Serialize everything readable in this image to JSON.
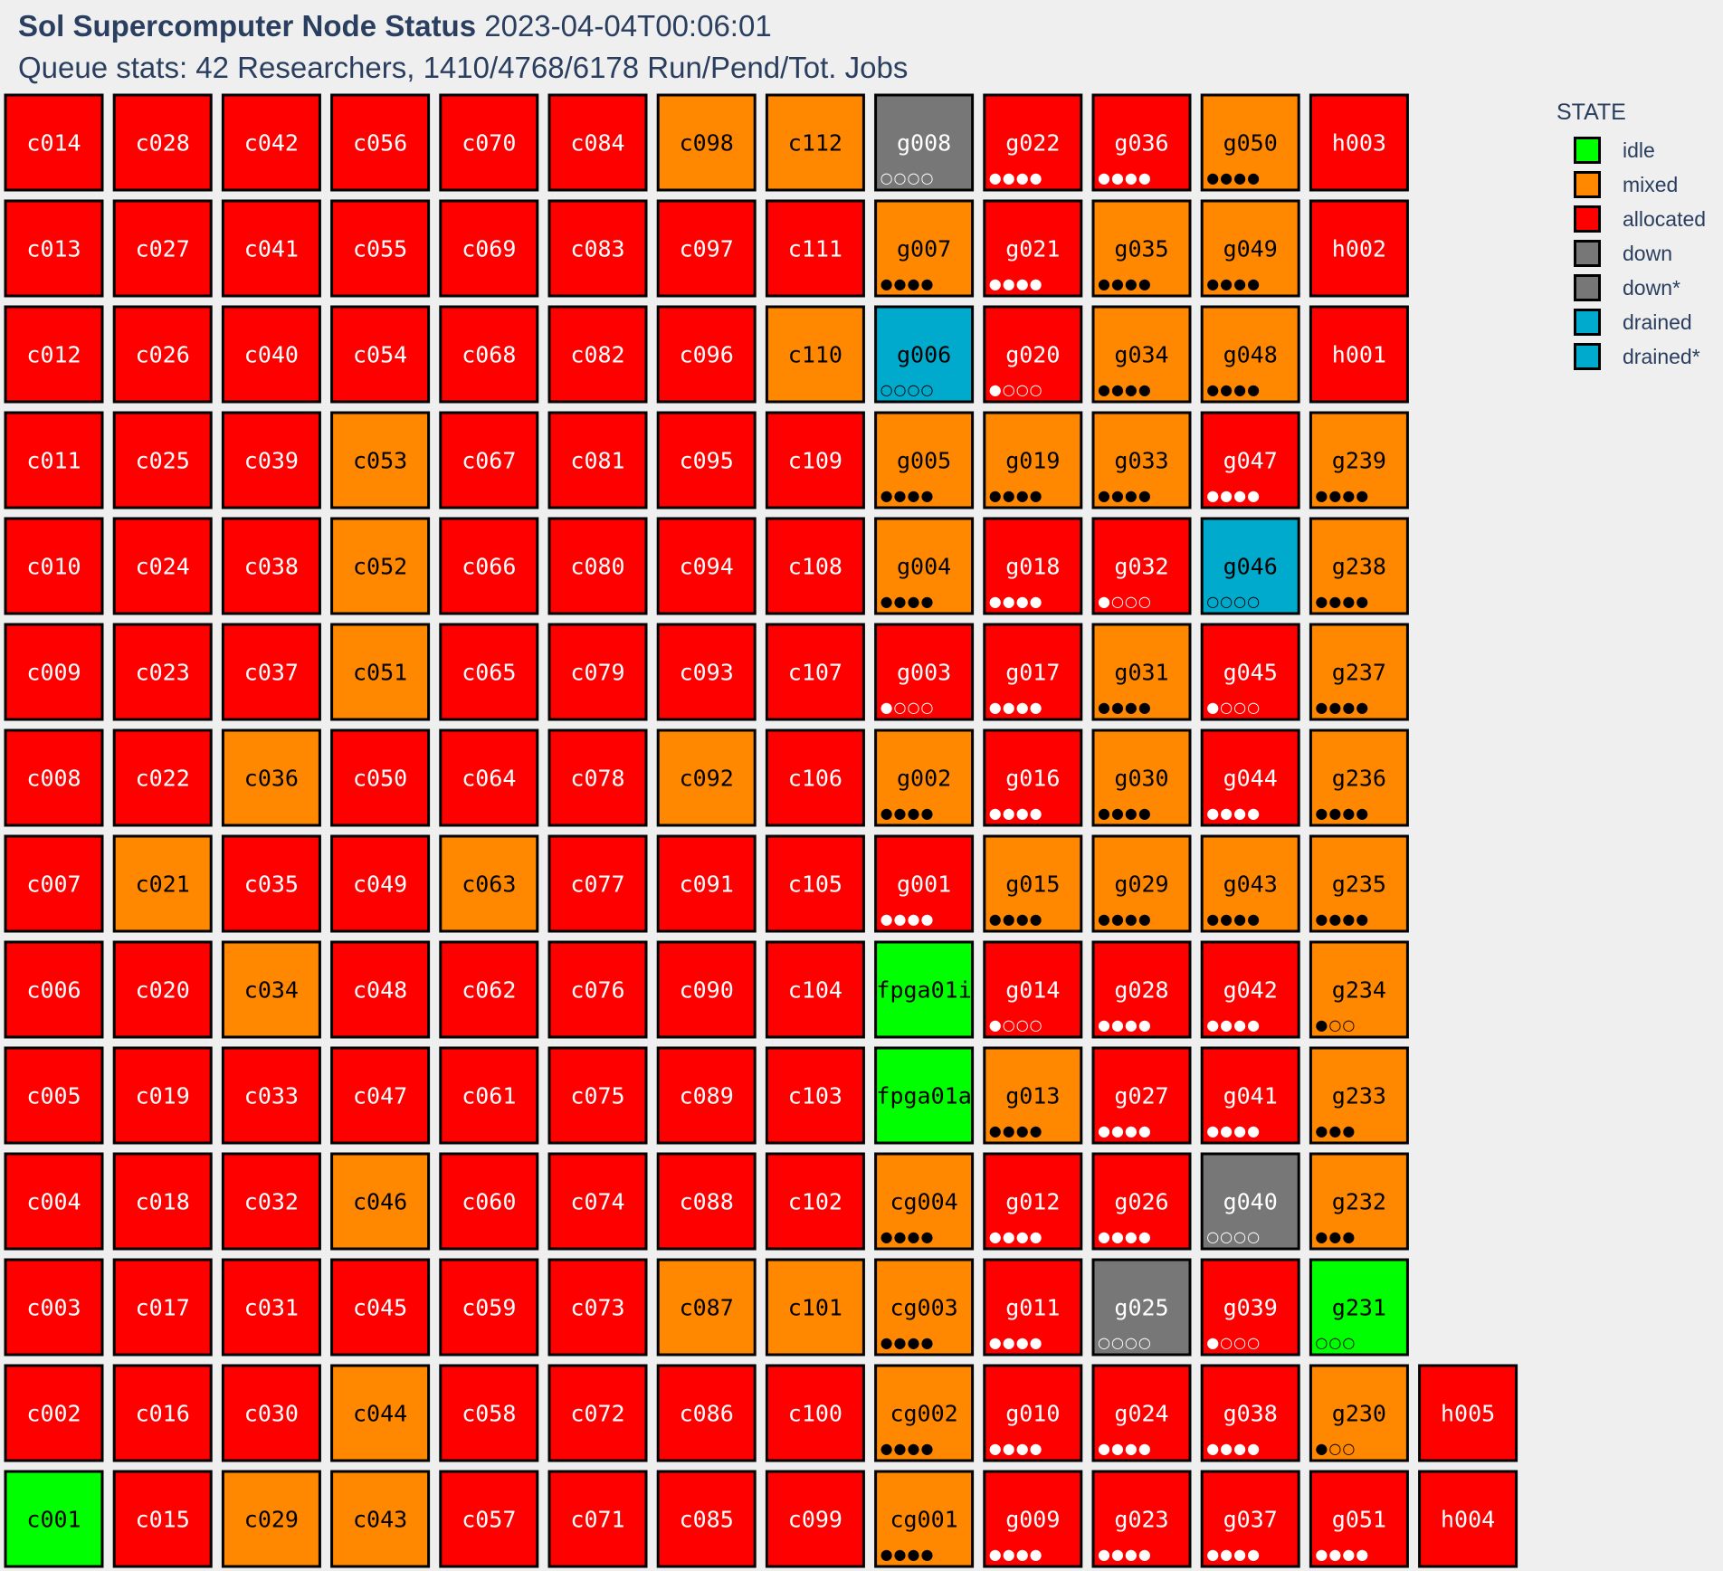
{
  "header": {
    "title_bold": "Sol Supercomputer Node Status",
    "timestamp": "2023-04-04T00:06:01",
    "subtitle": "Queue stats: 42 Researchers, 1410/4768/6178 Run/Pend/Tot. Jobs"
  },
  "legend": {
    "title": "STATE",
    "items": [
      {
        "label": "idle",
        "color": "#00ff00"
      },
      {
        "label": "mixed",
        "color": "#ff8800"
      },
      {
        "label": "allocated",
        "color": "#ff0000"
      },
      {
        "label": "down",
        "color": "#777777"
      },
      {
        "label": "down*",
        "color": "#777777"
      },
      {
        "label": "drained",
        "color": "#00aacc"
      },
      {
        "label": "drained*",
        "color": "#00aacc"
      }
    ]
  },
  "chart_data": {
    "type": "heatmap",
    "state_colors": {
      "idle": "#00ff00",
      "mixed": "#ff8800",
      "allocated": "#ff0000",
      "down": "#777777",
      "drained": "#00aacc"
    },
    "columns": [
      [
        {
          "name": "c014",
          "state": "allocated"
        },
        {
          "name": "c013",
          "state": "allocated"
        },
        {
          "name": "c012",
          "state": "allocated"
        },
        {
          "name": "c011",
          "state": "allocated"
        },
        {
          "name": "c010",
          "state": "allocated"
        },
        {
          "name": "c009",
          "state": "allocated"
        },
        {
          "name": "c008",
          "state": "allocated"
        },
        {
          "name": "c007",
          "state": "allocated"
        },
        {
          "name": "c006",
          "state": "allocated"
        },
        {
          "name": "c005",
          "state": "allocated"
        },
        {
          "name": "c004",
          "state": "allocated"
        },
        {
          "name": "c003",
          "state": "allocated"
        },
        {
          "name": "c002",
          "state": "allocated"
        },
        {
          "name": "c001",
          "state": "idle"
        }
      ],
      [
        {
          "name": "c028",
          "state": "allocated"
        },
        {
          "name": "c027",
          "state": "allocated"
        },
        {
          "name": "c026",
          "state": "allocated"
        },
        {
          "name": "c025",
          "state": "allocated"
        },
        {
          "name": "c024",
          "state": "allocated"
        },
        {
          "name": "c023",
          "state": "allocated"
        },
        {
          "name": "c022",
          "state": "allocated"
        },
        {
          "name": "c021",
          "state": "mixed"
        },
        {
          "name": "c020",
          "state": "allocated"
        },
        {
          "name": "c019",
          "state": "allocated"
        },
        {
          "name": "c018",
          "state": "allocated"
        },
        {
          "name": "c017",
          "state": "allocated"
        },
        {
          "name": "c016",
          "state": "allocated"
        },
        {
          "name": "c015",
          "state": "allocated"
        }
      ],
      [
        {
          "name": "c042",
          "state": "allocated"
        },
        {
          "name": "c041",
          "state": "allocated"
        },
        {
          "name": "c040",
          "state": "allocated"
        },
        {
          "name": "c039",
          "state": "allocated"
        },
        {
          "name": "c038",
          "state": "allocated"
        },
        {
          "name": "c037",
          "state": "allocated"
        },
        {
          "name": "c036",
          "state": "mixed"
        },
        {
          "name": "c035",
          "state": "allocated"
        },
        {
          "name": "c034",
          "state": "mixed"
        },
        {
          "name": "c033",
          "state": "allocated"
        },
        {
          "name": "c032",
          "state": "allocated"
        },
        {
          "name": "c031",
          "state": "allocated"
        },
        {
          "name": "c030",
          "state": "allocated"
        },
        {
          "name": "c029",
          "state": "mixed"
        }
      ],
      [
        {
          "name": "c056",
          "state": "allocated"
        },
        {
          "name": "c055",
          "state": "allocated"
        },
        {
          "name": "c054",
          "state": "allocated"
        },
        {
          "name": "c053",
          "state": "mixed"
        },
        {
          "name": "c052",
          "state": "mixed"
        },
        {
          "name": "c051",
          "state": "mixed"
        },
        {
          "name": "c050",
          "state": "allocated"
        },
        {
          "name": "c049",
          "state": "allocated"
        },
        {
          "name": "c048",
          "state": "allocated"
        },
        {
          "name": "c047",
          "state": "allocated"
        },
        {
          "name": "c046",
          "state": "mixed"
        },
        {
          "name": "c045",
          "state": "allocated"
        },
        {
          "name": "c044",
          "state": "mixed"
        },
        {
          "name": "c043",
          "state": "mixed"
        }
      ],
      [
        {
          "name": "c070",
          "state": "allocated"
        },
        {
          "name": "c069",
          "state": "allocated"
        },
        {
          "name": "c068",
          "state": "allocated"
        },
        {
          "name": "c067",
          "state": "allocated"
        },
        {
          "name": "c066",
          "state": "allocated"
        },
        {
          "name": "c065",
          "state": "allocated"
        },
        {
          "name": "c064",
          "state": "allocated"
        },
        {
          "name": "c063",
          "state": "mixed"
        },
        {
          "name": "c062",
          "state": "allocated"
        },
        {
          "name": "c061",
          "state": "allocated"
        },
        {
          "name": "c060",
          "state": "allocated"
        },
        {
          "name": "c059",
          "state": "allocated"
        },
        {
          "name": "c058",
          "state": "allocated"
        },
        {
          "name": "c057",
          "state": "allocated"
        }
      ],
      [
        {
          "name": "c084",
          "state": "allocated"
        },
        {
          "name": "c083",
          "state": "allocated"
        },
        {
          "name": "c082",
          "state": "allocated"
        },
        {
          "name": "c081",
          "state": "allocated"
        },
        {
          "name": "c080",
          "state": "allocated"
        },
        {
          "name": "c079",
          "state": "allocated"
        },
        {
          "name": "c078",
          "state": "allocated"
        },
        {
          "name": "c077",
          "state": "allocated"
        },
        {
          "name": "c076",
          "state": "allocated"
        },
        {
          "name": "c075",
          "state": "allocated"
        },
        {
          "name": "c074",
          "state": "allocated"
        },
        {
          "name": "c073",
          "state": "allocated"
        },
        {
          "name": "c072",
          "state": "allocated"
        },
        {
          "name": "c071",
          "state": "allocated"
        }
      ],
      [
        {
          "name": "c098",
          "state": "mixed"
        },
        {
          "name": "c097",
          "state": "allocated"
        },
        {
          "name": "c096",
          "state": "allocated"
        },
        {
          "name": "c095",
          "state": "allocated"
        },
        {
          "name": "c094",
          "state": "allocated"
        },
        {
          "name": "c093",
          "state": "allocated"
        },
        {
          "name": "c092",
          "state": "mixed"
        },
        {
          "name": "c091",
          "state": "allocated"
        },
        {
          "name": "c090",
          "state": "allocated"
        },
        {
          "name": "c089",
          "state": "allocated"
        },
        {
          "name": "c088",
          "state": "allocated"
        },
        {
          "name": "c087",
          "state": "mixed"
        },
        {
          "name": "c086",
          "state": "allocated"
        },
        {
          "name": "c085",
          "state": "allocated"
        }
      ],
      [
        {
          "name": "c112",
          "state": "mixed"
        },
        {
          "name": "c111",
          "state": "allocated"
        },
        {
          "name": "c110",
          "state": "mixed"
        },
        {
          "name": "c109",
          "state": "allocated"
        },
        {
          "name": "c108",
          "state": "allocated"
        },
        {
          "name": "c107",
          "state": "allocated"
        },
        {
          "name": "c106",
          "state": "allocated"
        },
        {
          "name": "c105",
          "state": "allocated"
        },
        {
          "name": "c104",
          "state": "allocated"
        },
        {
          "name": "c103",
          "state": "allocated"
        },
        {
          "name": "c102",
          "state": "allocated"
        },
        {
          "name": "c101",
          "state": "mixed"
        },
        {
          "name": "c100",
          "state": "allocated"
        },
        {
          "name": "c099",
          "state": "allocated"
        }
      ],
      [
        {
          "name": "g008",
          "state": "down",
          "dots": "○○○○"
        },
        {
          "name": "g007",
          "state": "mixed",
          "dots": "●●●●"
        },
        {
          "name": "g006",
          "state": "drained",
          "dots": "○○○○"
        },
        {
          "name": "g005",
          "state": "mixed",
          "dots": "●●●●"
        },
        {
          "name": "g004",
          "state": "mixed",
          "dots": "●●●●"
        },
        {
          "name": "g003",
          "state": "allocated",
          "dots": "●○○○"
        },
        {
          "name": "g002",
          "state": "mixed",
          "dots": "●●●●"
        },
        {
          "name": "g001",
          "state": "allocated",
          "dots": "●●●●"
        },
        {
          "name": "fpga01i",
          "state": "idle"
        },
        {
          "name": "fpga01a",
          "state": "idle"
        },
        {
          "name": "cg004",
          "state": "mixed",
          "dots": "●●●●"
        },
        {
          "name": "cg003",
          "state": "mixed",
          "dots": "●●●●"
        },
        {
          "name": "cg002",
          "state": "mixed",
          "dots": "●●●●"
        },
        {
          "name": "cg001",
          "state": "mixed",
          "dots": "●●●●"
        }
      ],
      [
        {
          "name": "g022",
          "state": "allocated",
          "dots": "●●●●"
        },
        {
          "name": "g021",
          "state": "allocated",
          "dots": "●●●●"
        },
        {
          "name": "g020",
          "state": "allocated",
          "dots": "●○○○"
        },
        {
          "name": "g019",
          "state": "mixed",
          "dots": "●●●●"
        },
        {
          "name": "g018",
          "state": "allocated",
          "dots": "●●●●"
        },
        {
          "name": "g017",
          "state": "allocated",
          "dots": "●●●●"
        },
        {
          "name": "g016",
          "state": "allocated",
          "dots": "●●●●"
        },
        {
          "name": "g015",
          "state": "mixed",
          "dots": "●●●●"
        },
        {
          "name": "g014",
          "state": "allocated",
          "dots": "●○○○"
        },
        {
          "name": "g013",
          "state": "mixed",
          "dots": "●●●●"
        },
        {
          "name": "g012",
          "state": "allocated",
          "dots": "●●●●"
        },
        {
          "name": "g011",
          "state": "allocated",
          "dots": "●●●●"
        },
        {
          "name": "g010",
          "state": "allocated",
          "dots": "●●●●"
        },
        {
          "name": "g009",
          "state": "allocated",
          "dots": "●●●●"
        }
      ],
      [
        {
          "name": "g036",
          "state": "allocated",
          "dots": "●●●●"
        },
        {
          "name": "g035",
          "state": "mixed",
          "dots": "●●●●"
        },
        {
          "name": "g034",
          "state": "mixed",
          "dots": "●●●●"
        },
        {
          "name": "g033",
          "state": "mixed",
          "dots": "●●●●"
        },
        {
          "name": "g032",
          "state": "allocated",
          "dots": "●○○○"
        },
        {
          "name": "g031",
          "state": "mixed",
          "dots": "●●●●"
        },
        {
          "name": "g030",
          "state": "mixed",
          "dots": "●●●●"
        },
        {
          "name": "g029",
          "state": "mixed",
          "dots": "●●●●"
        },
        {
          "name": "g028",
          "state": "allocated",
          "dots": "●●●●"
        },
        {
          "name": "g027",
          "state": "allocated",
          "dots": "●●●●"
        },
        {
          "name": "g026",
          "state": "allocated",
          "dots": "●●●●"
        },
        {
          "name": "g025",
          "state": "down",
          "dots": "○○○○"
        },
        {
          "name": "g024",
          "state": "allocated",
          "dots": "●●●●"
        },
        {
          "name": "g023",
          "state": "allocated",
          "dots": "●●●●"
        }
      ],
      [
        {
          "name": "g050",
          "state": "mixed",
          "dots": "●●●●"
        },
        {
          "name": "g049",
          "state": "mixed",
          "dots": "●●●●"
        },
        {
          "name": "g048",
          "state": "mixed",
          "dots": "●●●●"
        },
        {
          "name": "g047",
          "state": "allocated",
          "dots": "●●●●"
        },
        {
          "name": "g046",
          "state": "drained",
          "dots": "○○○○"
        },
        {
          "name": "g045",
          "state": "allocated",
          "dots": "●○○○"
        },
        {
          "name": "g044",
          "state": "allocated",
          "dots": "●●●●"
        },
        {
          "name": "g043",
          "state": "mixed",
          "dots": "●●●●"
        },
        {
          "name": "g042",
          "state": "allocated",
          "dots": "●●●●"
        },
        {
          "name": "g041",
          "state": "allocated",
          "dots": "●●●●"
        },
        {
          "name": "g040",
          "state": "down",
          "dots": "○○○○"
        },
        {
          "name": "g039",
          "state": "allocated",
          "dots": "●○○○"
        },
        {
          "name": "g038",
          "state": "allocated",
          "dots": "●●●●"
        },
        {
          "name": "g037",
          "state": "allocated",
          "dots": "●●●●"
        }
      ],
      [
        {
          "name": "h003",
          "state": "allocated"
        },
        {
          "name": "h002",
          "state": "allocated"
        },
        {
          "name": "h001",
          "state": "allocated"
        },
        {
          "name": "g239",
          "state": "mixed",
          "dots": "●●●●"
        },
        {
          "name": "g238",
          "state": "mixed",
          "dots": "●●●●"
        },
        {
          "name": "g237",
          "state": "mixed",
          "dots": "●●●●"
        },
        {
          "name": "g236",
          "state": "mixed",
          "dots": "●●●●"
        },
        {
          "name": "g235",
          "state": "mixed",
          "dots": "●●●●"
        },
        {
          "name": "g234",
          "state": "mixed",
          "dots": "●○○"
        },
        {
          "name": "g233",
          "state": "mixed",
          "dots": "●●●"
        },
        {
          "name": "g232",
          "state": "mixed",
          "dots": "●●●"
        },
        {
          "name": "g231",
          "state": "idle",
          "dots": "○○○"
        },
        {
          "name": "g230",
          "state": "mixed",
          "dots": "●○○"
        },
        {
          "name": "g051",
          "state": "allocated",
          "dots": "●●●●"
        }
      ],
      [
        null,
        null,
        null,
        null,
        null,
        null,
        null,
        null,
        null,
        null,
        null,
        null,
        {
          "name": "h005",
          "state": "allocated"
        },
        {
          "name": "h004",
          "state": "allocated"
        }
      ]
    ]
  }
}
